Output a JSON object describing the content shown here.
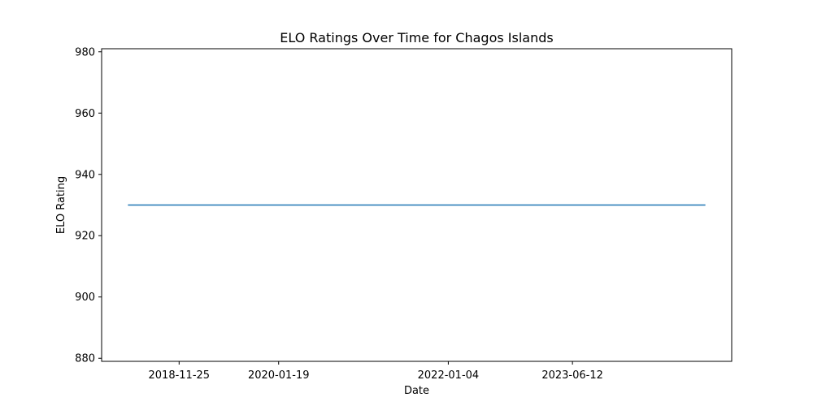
{
  "chart_data": {
    "type": "line",
    "title": "ELO Ratings Over Time for Chagos Islands",
    "xlabel": "Date",
    "ylabel": "ELO Rating",
    "ylim": [
      879,
      981
    ],
    "xlim": [
      "2018-01-02",
      "2025-04-14"
    ],
    "y_ticks": [
      880,
      900,
      920,
      940,
      960,
      980
    ],
    "x_ticks": [
      "2018-11-25",
      "2020-01-19",
      "2022-01-04",
      "2023-06-12"
    ],
    "grid": false,
    "series": [
      {
        "color": "#1f77b4",
        "points": [
          {
            "x": "2018-04-23",
            "y": 930
          },
          {
            "x": "2024-12-24",
            "y": 930
          }
        ]
      }
    ]
  }
}
